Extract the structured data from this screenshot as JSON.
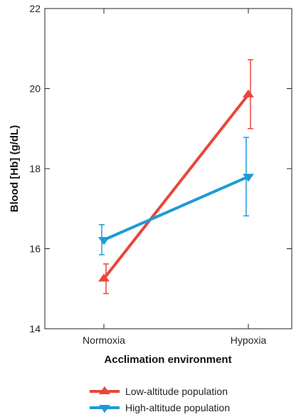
{
  "chart_data": {
    "type": "line",
    "categories": [
      "Normoxia",
      "Hypoxia"
    ],
    "xlabel": "Acclimation environment",
    "ylabel": "Blood [Hb] (g/dL)",
    "ylim": [
      14,
      22
    ],
    "yticks": [
      14,
      16,
      18,
      20,
      22
    ],
    "grid": false,
    "legend_position": "bottom-center",
    "series": [
      {
        "name": "Low-altitude population",
        "color": "#e8473a",
        "marker": "triangle-up",
        "values": [
          15.25,
          19.85
        ],
        "error_low": [
          14.88,
          19.0
        ],
        "error_high": [
          15.62,
          20.72
        ]
      },
      {
        "name": "High-altitude population",
        "color": "#1d9bd6",
        "marker": "triangle-down",
        "values": [
          16.22,
          17.8
        ],
        "error_low": [
          15.85,
          16.82
        ],
        "error_high": [
          16.6,
          18.78
        ]
      }
    ]
  }
}
